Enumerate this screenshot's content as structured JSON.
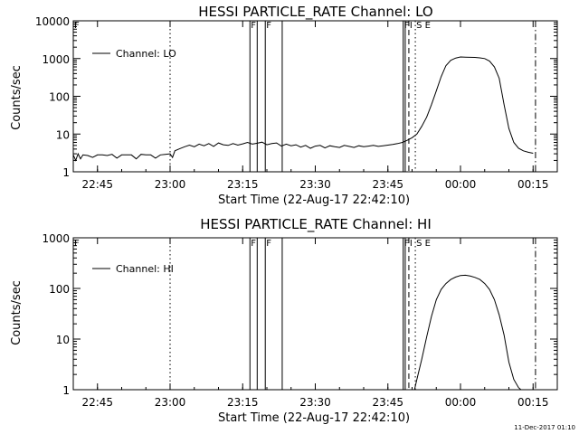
{
  "timestamp": "11-Dec-2017 01:10",
  "chart_data": [
    {
      "type": "line",
      "title": "HESSI PARTICLE_RATE Channel: LO",
      "xlabel": "Start Time (22-Aug-17 22:42:10)",
      "ylabel": "Counts/sec",
      "yscale": "log",
      "xlim": [
        "22:40",
        "00:20"
      ],
      "ylim": [
        1,
        10000
      ],
      "x_ticks": [
        "22:45",
        "23:00",
        "23:15",
        "23:30",
        "23:45",
        "00:00",
        "00:15"
      ],
      "y_ticks": [
        "1",
        "10",
        "100",
        "1000",
        "10000"
      ],
      "legend": {
        "position": "top-left",
        "entry": "Channel: LO"
      },
      "grid": false,
      "series": [
        {
          "name": "Channel: LO",
          "x": [
            "22:40",
            "22:40:30",
            "22:41",
            "22:41:30",
            "22:42",
            "22:43",
            "22:44",
            "22:45",
            "22:46",
            "22:47",
            "22:48",
            "22:49",
            "22:50",
            "22:51",
            "22:52",
            "22:53",
            "22:54",
            "22:55",
            "22:56",
            "22:57",
            "22:58",
            "22:59",
            "23:00",
            "23:00:30",
            "23:01",
            "23:02",
            "23:03",
            "23:04",
            "23:05",
            "23:06",
            "23:07",
            "23:08",
            "23:09",
            "23:10",
            "23:11",
            "23:12",
            "23:13",
            "23:14",
            "23:15",
            "23:16",
            "23:17",
            "23:18",
            "23:19",
            "23:20",
            "23:21",
            "23:22",
            "23:23",
            "23:24",
            "23:25",
            "23:26",
            "23:27",
            "23:28",
            "23:29",
            "23:30",
            "23:31",
            "23:32",
            "23:33",
            "23:34",
            "23:35",
            "23:36",
            "23:37",
            "23:38",
            "23:39",
            "23:40",
            "23:41",
            "23:42",
            "23:43",
            "23:44",
            "23:45",
            "23:46",
            "23:47",
            "23:48",
            "23:49",
            "23:50",
            "23:51",
            "23:52",
            "23:53",
            "23:54",
            "23:55",
            "23:56",
            "23:57",
            "23:58",
            "23:59",
            "00:00",
            "00:01",
            "00:02",
            "00:03",
            "00:04",
            "00:05",
            "00:06",
            "00:07",
            "00:08",
            "00:09",
            "00:10",
            "00:11",
            "00:12",
            "00:13",
            "00:14",
            "00:15"
          ],
          "y": [
            2.8,
            2.0,
            3.0,
            2.2,
            2.8,
            2.7,
            2.4,
            2.8,
            2.8,
            2.7,
            2.9,
            2.3,
            2.8,
            2.8,
            2.8,
            2.2,
            2.9,
            2.8,
            2.8,
            2.3,
            2.8,
            2.9,
            3.0,
            2.4,
            3.6,
            4.1,
            4.6,
            5.1,
            4.6,
            5.4,
            4.9,
            5.6,
            4.7,
            5.8,
            5.2,
            5.0,
            5.6,
            5.1,
            5.5,
            6.0,
            5.4,
            5.7,
            6.1,
            5.2,
            5.6,
            5.8,
            4.8,
            5.4,
            4.9,
            5.2,
            4.5,
            5.0,
            4.2,
            4.8,
            5.0,
            4.3,
            4.9,
            4.6,
            4.4,
            5.0,
            4.7,
            4.4,
            4.9,
            4.6,
            4.8,
            5.0,
            4.7,
            4.9,
            5.1,
            5.3,
            5.6,
            6.0,
            6.8,
            8.0,
            10,
            16,
            28,
            60,
            140,
            330,
            650,
            900,
            1030,
            1100,
            1090,
            1080,
            1070,
            1040,
            1000,
            860,
            600,
            300,
            60,
            14,
            6,
            4.2,
            3.6,
            3.3,
            3.1
          ]
        }
      ]
    },
    {
      "type": "line",
      "title": "HESSI PARTICLE_RATE Channel: HI",
      "xlabel": "Start Time (22-Aug-17 22:42:10)",
      "ylabel": "Counts/sec",
      "yscale": "log",
      "xlim": [
        "22:40",
        "00:20"
      ],
      "ylim": [
        1,
        1000
      ],
      "x_ticks": [
        "22:45",
        "23:00",
        "23:15",
        "23:30",
        "23:45",
        "00:00",
        "00:15"
      ],
      "y_ticks": [
        "1",
        "10",
        "100",
        "1000"
      ],
      "legend": {
        "position": "top-left",
        "entry": "Channel: HI"
      },
      "grid": false,
      "series": [
        {
          "name": "Channel: HI",
          "x": [
            "23:50:30",
            "23:51",
            "23:52",
            "23:53",
            "23:54",
            "23:55",
            "23:56",
            "23:57",
            "23:58",
            "23:59",
            "00:00",
            "00:01",
            "00:02",
            "00:03",
            "00:04",
            "00:05",
            "00:06",
            "00:07",
            "00:08",
            "00:09",
            "00:10",
            "00:11",
            "00:12",
            "00:12:30"
          ],
          "y": [
            1,
            1.6,
            4,
            11,
            28,
            60,
            95,
            125,
            150,
            168,
            180,
            182,
            176,
            165,
            150,
            125,
            95,
            60,
            30,
            12,
            3.5,
            1.6,
            1.1,
            1
          ]
        }
      ]
    }
  ]
}
